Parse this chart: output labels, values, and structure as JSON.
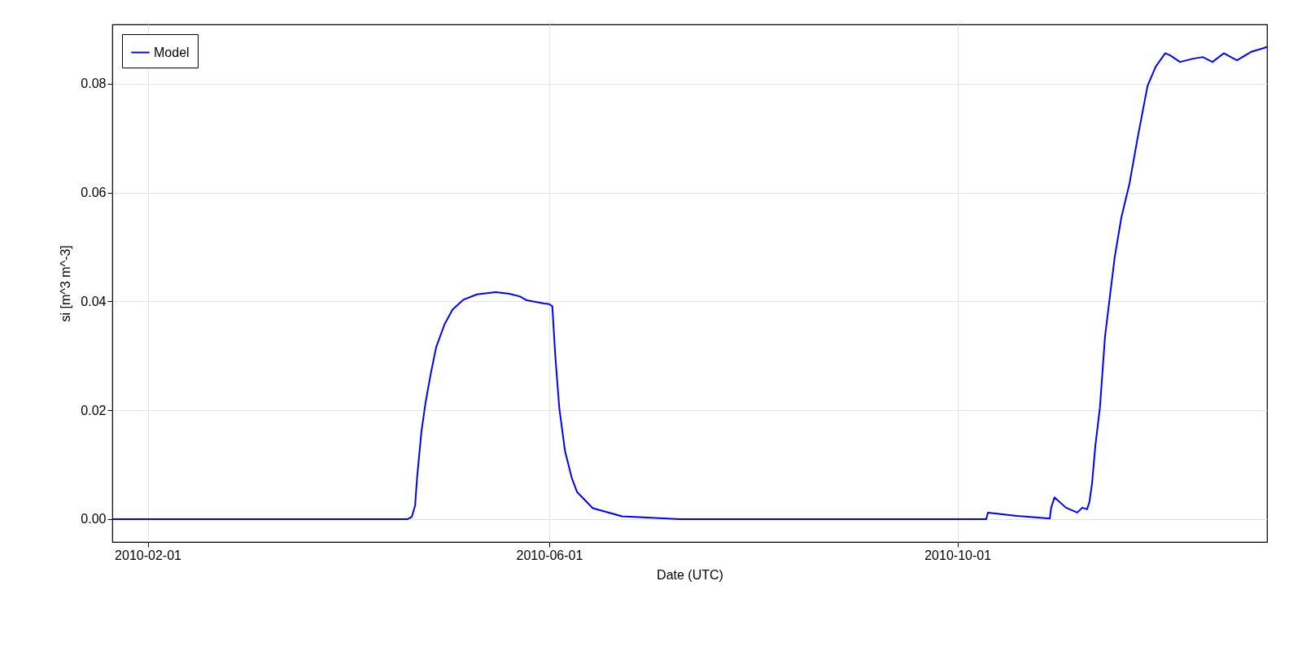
{
  "chart_data": {
    "type": "line",
    "xlabel": "Date (UTC)",
    "ylabel": "si [m^3 m^-3]",
    "x": [
      "2010-01-21T10:00",
      "2010-04-19T17:00",
      "2010-04-20T22:00",
      "2010-04-21T22:00",
      "2010-04-22T12:00",
      "2010-04-23T19:00",
      "2010-04-25",
      "2010-04-26T14:00",
      "2010-04-28T05:00",
      "2010-04-30T17:00",
      "2010-05-03T02:00",
      "2010-05-06T07:00",
      "2010-05-10T10:00",
      "2010-05-16",
      "2010-05-20T02:00",
      "2010-05-23T07:00",
      "2010-05-25T07:00",
      "2010-05-30T14:00",
      "2010-06-01",
      "2010-06-01T22:00",
      "2010-06-02T19:00",
      "2010-06-04",
      "2010-06-05T17:00",
      "2010-06-07T17:00",
      "2010-06-09T07:00",
      "2010-06-14",
      "2010-06-22T19:00",
      "2010-07-10",
      "2010-10-09T14:00",
      "2010-10-10T02:00",
      "2010-10-18T19:00",
      "2010-10-28T14:00",
      "2010-10-29",
      "2010-10-30",
      "2010-11-02T10:00",
      "2010-11-05T19:00",
      "2010-11-07T07:00",
      "2010-11-08T17:00",
      "2010-11-09T10:00",
      "2010-11-10T05:00",
      "2010-11-11T05:00",
      "2010-11-12T14:00",
      "2010-11-14T02:00",
      "2010-11-15T14:00",
      "2010-11-17",
      "2010-11-19",
      "2010-11-21T10:00",
      "2010-11-23T19:00",
      "2010-11-26T19:00",
      "2010-11-29T05:00",
      "2010-12-02T02:00",
      "2010-12-03T14:00",
      "2010-12-06T12:00",
      "2010-12-10T10:00",
      "2010-12-13T07:00",
      "2010-12-16T05:00",
      "2010-12-19T14:00",
      "2010-12-23T12:00",
      "2010-12-27T22:00",
      "2010-12-31T19:00",
      "2011-01-01T12:00"
    ],
    "series": [
      {
        "name": "Model",
        "color": "#0000ff",
        "values": [
          0,
          0,
          0.0004,
          0.0025,
          0.0076,
          0.016,
          0.0213,
          0.0267,
          0.0316,
          0.0358,
          0.0385,
          0.0403,
          0.0413,
          0.0417,
          0.0414,
          0.0409,
          0.0402,
          0.0396,
          0.0395,
          0.0391,
          0.0301,
          0.0204,
          0.0125,
          0.0076,
          0.005,
          0.002,
          0.0005,
          0,
          0,
          0.0012,
          0.0006,
          0.0001,
          0.0021,
          0.004,
          0.0021,
          0.0012,
          0.0021,
          0.0018,
          0.0031,
          0.0065,
          0.0135,
          0.0206,
          0.0335,
          0.0411,
          0.0482,
          0.0555,
          0.0617,
          0.0699,
          0.0796,
          0.0831,
          0.0856,
          0.0852,
          0.084,
          0.0846,
          0.0849,
          0.084,
          0.0856,
          0.0843,
          0.0859,
          0.0866,
          0.0868
        ]
      }
    ],
    "xlim": [
      "2010-01-21T10:00",
      "2011-01-01T12:00"
    ],
    "xticks": [
      "2010-02-01",
      "2010-06-01",
      "2010-10-01"
    ],
    "ylim": [
      -0.0042,
      0.0909
    ],
    "yticks": [
      {
        "value": 0,
        "label": "0.00"
      },
      {
        "value": 0.02,
        "label": "0.02"
      },
      {
        "value": 0.04,
        "label": "0.04"
      },
      {
        "value": 0.06,
        "label": "0.06"
      },
      {
        "value": 0.08,
        "label": "0.08"
      }
    ],
    "grid": true,
    "legend": "top left",
    "marker": "none",
    "line_style": "solid"
  }
}
